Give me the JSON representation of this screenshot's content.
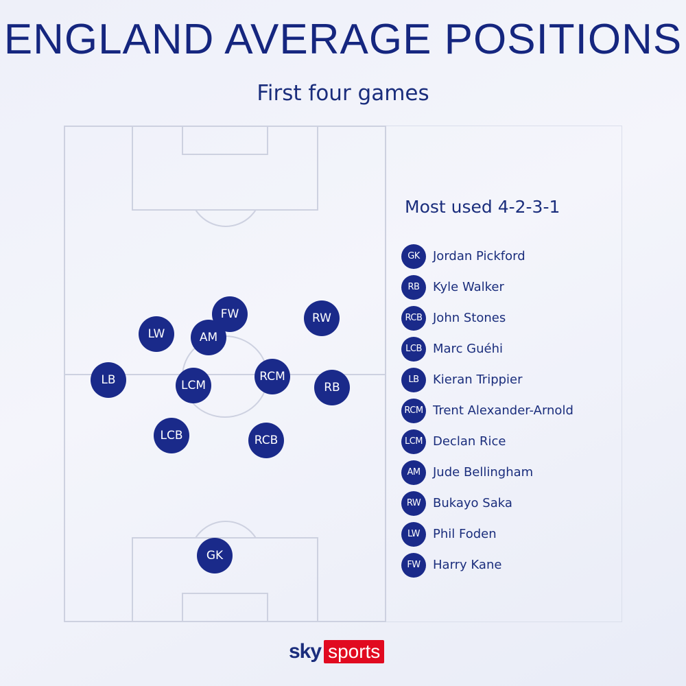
{
  "title": "ENGLAND AVERAGE POSITIONS",
  "subtitle": "First four games",
  "legend": {
    "title": "Most used 4-2-3-1",
    "items": [
      {
        "code": "GK",
        "name": "Jordan Pickford"
      },
      {
        "code": "RB",
        "name": "Kyle Walker"
      },
      {
        "code": "RCB",
        "name": "John Stones"
      },
      {
        "code": "LCB",
        "name": "Marc Guéhi"
      },
      {
        "code": "LB",
        "name": "Kieran Trippier"
      },
      {
        "code": "RCM",
        "name": "Trent Alexander-Arnold"
      },
      {
        "code": "LCM",
        "name": "Declan Rice"
      },
      {
        "code": "AM",
        "name": "Jude Bellingham"
      },
      {
        "code": "RW",
        "name": "Bukayo Saka"
      },
      {
        "code": "LW",
        "name": "Phil Foden"
      },
      {
        "code": "FW",
        "name": "Harry Kane"
      }
    ]
  },
  "pitch_positions": [
    "FW",
    "RW",
    "LW",
    "AM",
    "LB",
    "LCM",
    "RCM",
    "RB",
    "LCB",
    "RCB",
    "GK"
  ],
  "logo": {
    "sky": "sky",
    "sports": "sports"
  },
  "colors": {
    "marker": "#1a2a8a",
    "title": "#15267f",
    "logo_red": "#e10a20"
  }
}
